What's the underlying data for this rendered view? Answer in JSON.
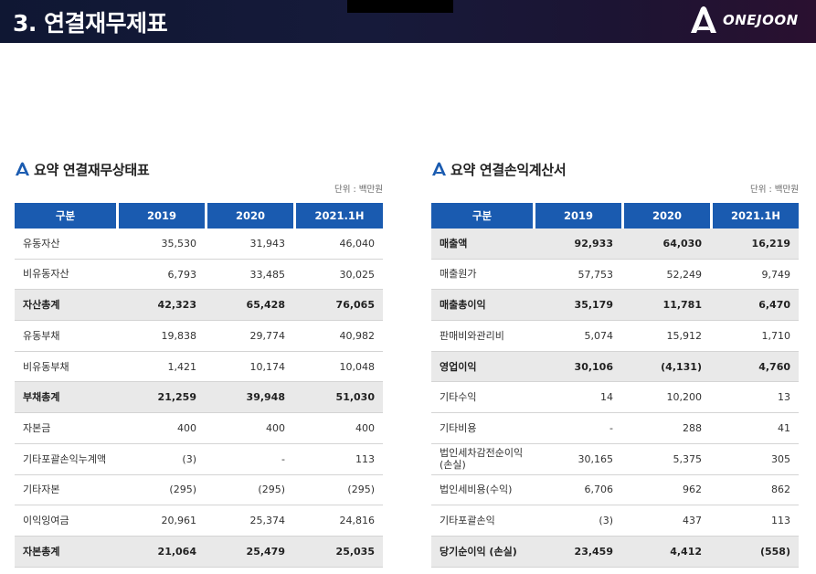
{
  "header": {
    "title": "3. 연결재무제표",
    "logo_text": "ONEJOON"
  },
  "balance_sheet": {
    "title": "요약 연결재무상태표",
    "unit": "단위 : 백만원",
    "headers": [
      "구분",
      "2019",
      "2020",
      "2021.1H"
    ],
    "rows": [
      {
        "label": "유동자산",
        "values": [
          "35,530",
          "31,943",
          "46,040"
        ],
        "shaded": false
      },
      {
        "label": "비유동자산",
        "values": [
          "6,793",
          "33,485",
          "30,025"
        ],
        "shaded": false
      },
      {
        "label": "자산총계",
        "values": [
          "42,323",
          "65,428",
          "76,065"
        ],
        "shaded": true
      },
      {
        "label": "유동부채",
        "values": [
          "19,838",
          "29,774",
          "40,982"
        ],
        "shaded": false
      },
      {
        "label": "비유동부채",
        "values": [
          "1,421",
          "10,174",
          "10,048"
        ],
        "shaded": false
      },
      {
        "label": "부채총계",
        "values": [
          "21,259",
          "39,948",
          "51,030"
        ],
        "shaded": true
      },
      {
        "label": "자본금",
        "values": [
          "400",
          "400",
          "400"
        ],
        "shaded": false
      },
      {
        "label": "기타포괄손익누계액",
        "values": [
          "(3)",
          "-",
          "113"
        ],
        "shaded": false
      },
      {
        "label": "기타자본",
        "values": [
          "(295)",
          "(295)",
          "(295)"
        ],
        "shaded": false
      },
      {
        "label": "이익잉여금",
        "values": [
          "20,961",
          "25,374",
          "24,816"
        ],
        "shaded": false
      },
      {
        "label": "자본총계",
        "values": [
          "21,064",
          "25,479",
          "25,035"
        ],
        "shaded": true
      }
    ]
  },
  "income_statement": {
    "title": "요약 연결손익계산서",
    "unit": "단위 : 백만원",
    "headers": [
      "구분",
      "2019",
      "2020",
      "2021.1H"
    ],
    "rows": [
      {
        "label": "매출액",
        "values": [
          "92,933",
          "64,030",
          "16,219"
        ],
        "shaded": true
      },
      {
        "label": "매출원가",
        "values": [
          "57,753",
          "52,249",
          "9,749"
        ],
        "shaded": false
      },
      {
        "label": "매출총이익",
        "values": [
          "35,179",
          "11,781",
          "6,470"
        ],
        "shaded": true
      },
      {
        "label": "판매비와관리비",
        "values": [
          "5,074",
          "15,912",
          "1,710"
        ],
        "shaded": false
      },
      {
        "label": "영업이익",
        "values": [
          "30,106",
          "(4,131)",
          "4,760"
        ],
        "shaded": true
      },
      {
        "label": "기타수익",
        "values": [
          "14",
          "10,200",
          "13"
        ],
        "shaded": false
      },
      {
        "label": "기타비용",
        "values": [
          "-",
          "288",
          "41"
        ],
        "shaded": false
      },
      {
        "label": "법인세차감전순이익\n(손실)",
        "values": [
          "30,165",
          "5,375",
          "305"
        ],
        "shaded": false
      },
      {
        "label": "법인세비용(수익)",
        "values": [
          "6,706",
          "962",
          "862"
        ],
        "shaded": false
      },
      {
        "label": "기타포괄손익",
        "values": [
          "(3)",
          "437",
          "113"
        ],
        "shaded": false
      },
      {
        "label": "당기순이익 (손실)",
        "values": [
          "23,459",
          "4,412",
          "(558)"
        ],
        "shaded": true
      }
    ]
  }
}
